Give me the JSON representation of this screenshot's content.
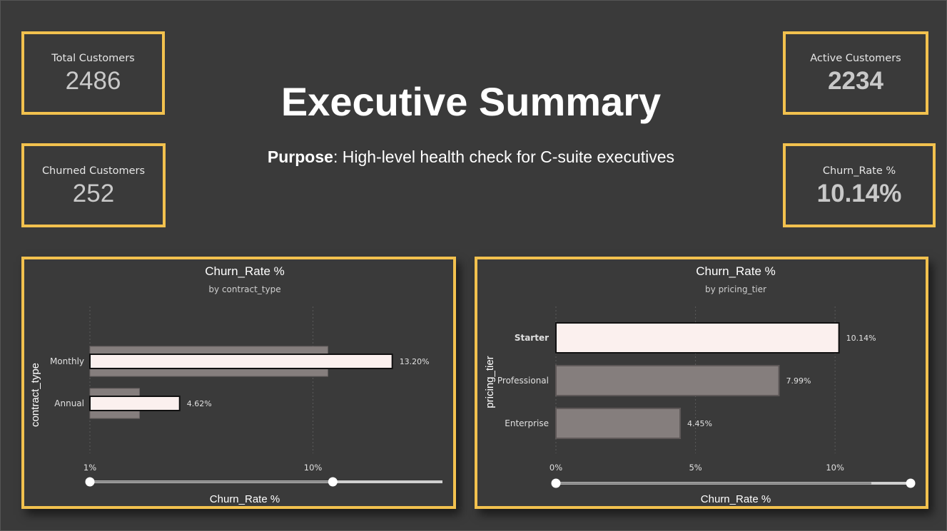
{
  "header": {
    "title": "Executive Summary",
    "purpose_label": "Purpose",
    "purpose_text": ": High-level health check for C-suite executives"
  },
  "kpis": {
    "total_customers": {
      "label": "Total Customers",
      "value": "2486"
    },
    "active_customers": {
      "label": "Active Customers",
      "value": "2234"
    },
    "churned_customers": {
      "label": "Churned Customers",
      "value": "252"
    },
    "churn_rate": {
      "label": "Churn_Rate %",
      "value": "10.14%"
    }
  },
  "colors": {
    "accent": "#f2c14e",
    "background": "#3a3a3a",
    "bar_highlight": "#fbf0ee",
    "bar_muted": "#857e7d"
  },
  "chart_data": [
    {
      "type": "bar",
      "orientation": "horizontal",
      "title": "Churn_Rate %",
      "subtitle": "by contract_type",
      "ylabel": "contract_type",
      "xlabel": "Churn_Rate %",
      "categories": [
        "Monthly",
        "Annual"
      ],
      "values": [
        13.2,
        4.62
      ],
      "data_labels": [
        "13.20%",
        "4.62%"
      ],
      "background_values": [
        10.6,
        3.0
      ],
      "xlim": [
        1,
        13.9
      ],
      "xticks": [
        1,
        10
      ],
      "xtick_labels": [
        "1%",
        "10%"
      ],
      "range_slider": [
        1,
        10.8
      ],
      "grid": true
    },
    {
      "type": "bar",
      "orientation": "horizontal",
      "title": "Churn_Rate %",
      "subtitle": "by pricing_tier",
      "ylabel": "pricing_tier",
      "xlabel": "Churn_Rate %",
      "categories": [
        "Starter",
        "Professional",
        "Enterprise"
      ],
      "values": [
        10.14,
        7.99,
        4.45
      ],
      "data_labels": [
        "10.14%",
        "7.99%",
        "4.45%"
      ],
      "highlight_index": 0,
      "xlim": [
        0,
        11.3
      ],
      "xticks": [
        0,
        5,
        10
      ],
      "xtick_labels": [
        "0%",
        "5%",
        "10%"
      ],
      "range_slider": [
        0,
        11.3
      ],
      "grid": true
    }
  ]
}
